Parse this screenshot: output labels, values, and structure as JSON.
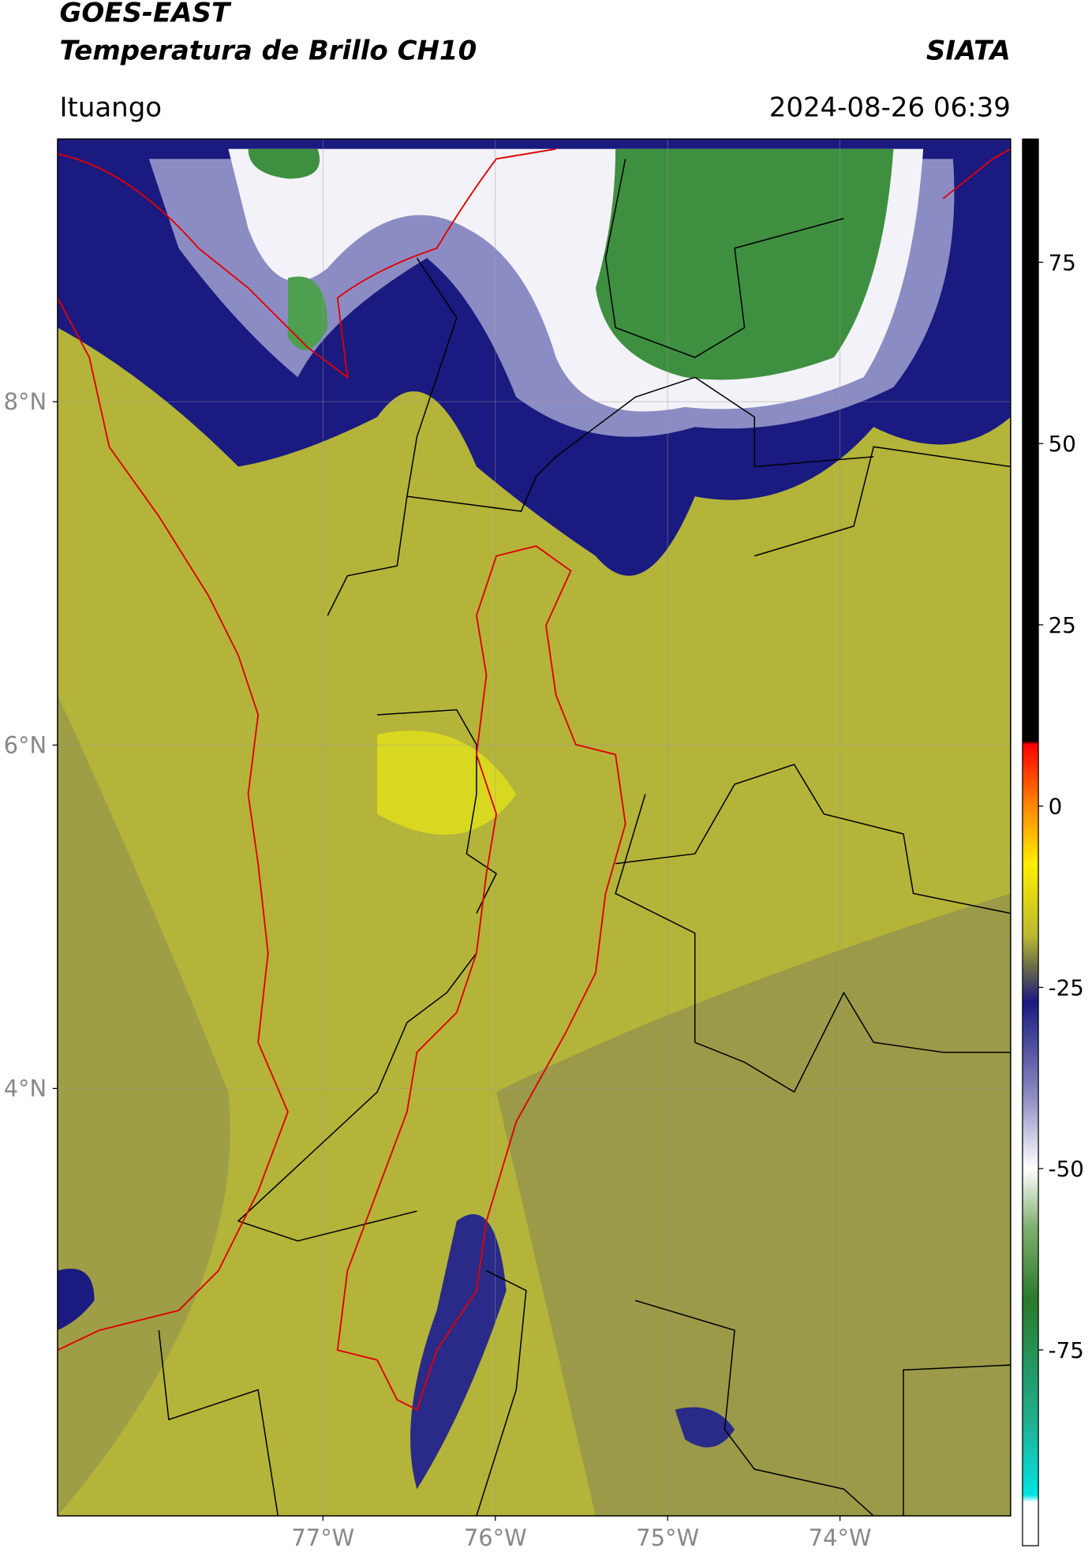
{
  "header": {
    "satellite": "GOES-EAST",
    "product": "Temperatura de Brillo CH10",
    "agency": "SIATA",
    "location": "Ituango",
    "timestamp": "2024-08-26 06:39"
  },
  "map": {
    "lon_lim": [
      -78.54,
      -73.01
    ],
    "lat_lim": [
      1.51,
      9.53
    ],
    "grid": true,
    "lat_ticks": [
      {
        "value": 8,
        "label": "8°N"
      },
      {
        "value": 6,
        "label": "6°N"
      },
      {
        "value": 4,
        "label": "4°N"
      }
    ],
    "lon_ticks": [
      {
        "value": -77,
        "label": "77°W"
      },
      {
        "value": -76,
        "label": "76°W"
      },
      {
        "value": -75,
        "label": "75°W"
      },
      {
        "value": -74,
        "label": "74°W"
      }
    ]
  },
  "colorbar": {
    "lim": [
      -102,
      92
    ],
    "ticks": [
      75,
      50,
      25,
      0,
      -25,
      -50,
      -75
    ],
    "stops": [
      {
        "value": 92,
        "color": "#000000"
      },
      {
        "value": 9,
        "color": "#000000"
      },
      {
        "value": 8.5,
        "color": "#ff0000"
      },
      {
        "value": 0,
        "color": "#ff8800"
      },
      {
        "value": -8,
        "color": "#ffee00"
      },
      {
        "value": -18,
        "color": "#b8b830"
      },
      {
        "value": -22,
        "color": "#6e6e48"
      },
      {
        "value": -27,
        "color": "#1a1a80"
      },
      {
        "value": -40,
        "color": "#8c8cc4"
      },
      {
        "value": -50,
        "color": "#ffffff"
      },
      {
        "value": -58,
        "color": "#80b070"
      },
      {
        "value": -68,
        "color": "#2a7a2a"
      },
      {
        "value": -85,
        "color": "#20b090"
      },
      {
        "value": -95,
        "color": "#00e4e4"
      },
      {
        "value": -96,
        "color": "#ffffff"
      },
      {
        "value": -102,
        "color": "#ffffff"
      }
    ]
  }
}
